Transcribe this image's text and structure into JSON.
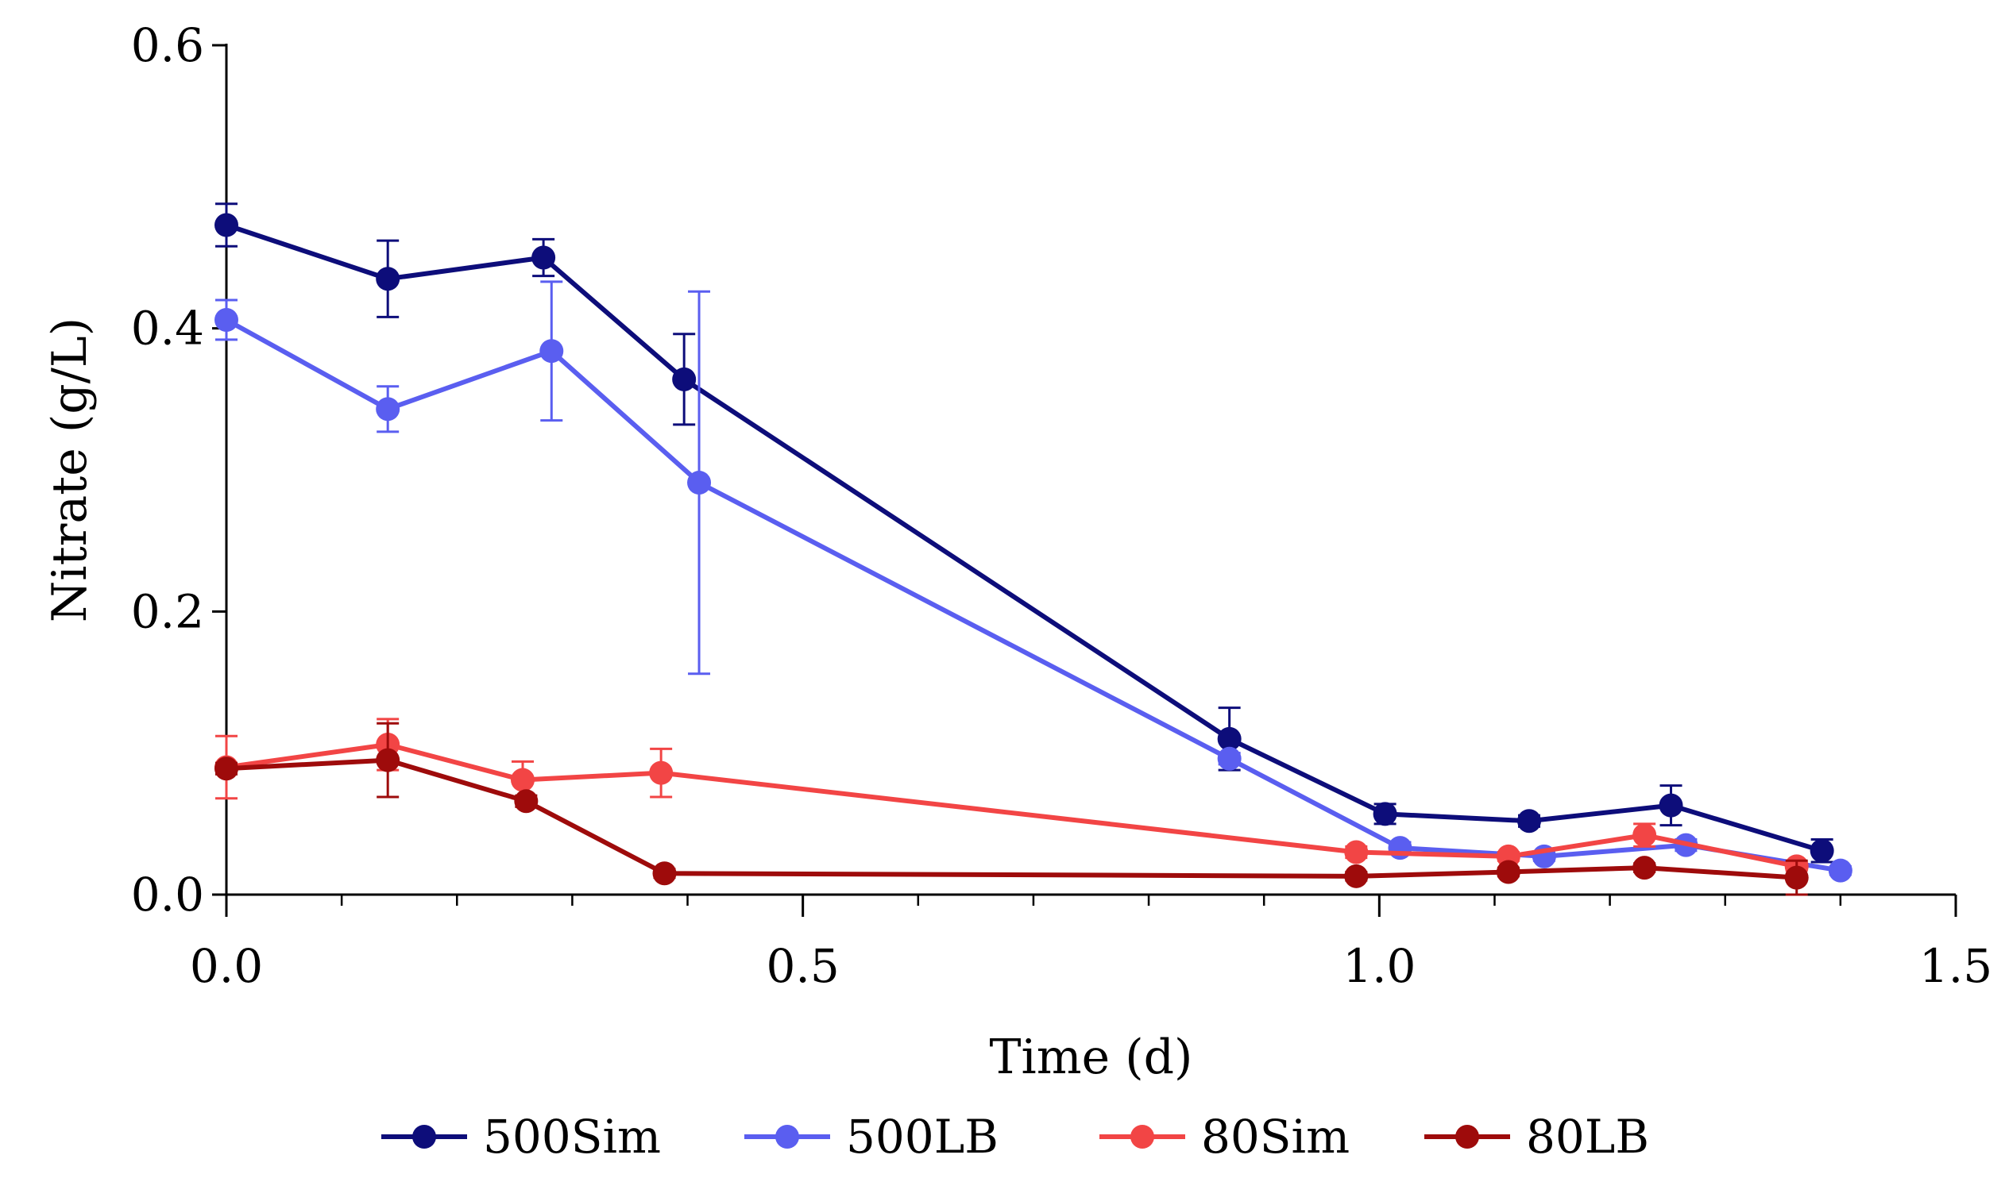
{
  "chart_data": {
    "type": "line",
    "title": "",
    "xlabel": "Time (d)",
    "ylabel": "Nitrate (g/L)",
    "xlim": [
      0,
      1.5
    ],
    "ylim": [
      0,
      0.6
    ],
    "x_ticks": [
      0.0,
      0.5,
      1.0,
      1.5
    ],
    "x_tick_labels": [
      "0.0",
      "0.5",
      "1.0",
      "1.5"
    ],
    "x_minor_step": 0.1,
    "y_ticks": [
      0.0,
      0.2,
      0.4,
      0.6
    ],
    "y_tick_labels": [
      "0.0",
      "0.2",
      "0.4",
      "0.6"
    ],
    "legend_position": "bottom",
    "grid": false,
    "series": [
      {
        "name": "500Sim",
        "color": "#0d0d7a",
        "points": [
          {
            "x": 0.0,
            "y": 0.473,
            "err": 0.015
          },
          {
            "x": 0.14,
            "y": 0.435,
            "err": 0.027
          },
          {
            "x": 0.275,
            "y": 0.45,
            "err": 0.013
          },
          {
            "x": 0.397,
            "y": 0.364,
            "err": 0.032
          },
          {
            "x": 0.87,
            "y": 0.11,
            "err": 0.022
          },
          {
            "x": 1.005,
            "y": 0.057,
            "err": 0.007
          },
          {
            "x": 1.13,
            "y": 0.052,
            "err": 0.004
          },
          {
            "x": 1.253,
            "y": 0.063,
            "err": 0.014
          },
          {
            "x": 1.384,
            "y": 0.031,
            "err": 0.008
          }
        ]
      },
      {
        "name": "500LB",
        "color": "#5a5ef0",
        "points": [
          {
            "x": 0.0,
            "y": 0.406,
            "err": 0.014
          },
          {
            "x": 0.14,
            "y": 0.343,
            "err": 0.016
          },
          {
            "x": 0.282,
            "y": 0.384,
            "err": 0.049
          },
          {
            "x": 0.41,
            "y": 0.291,
            "err": 0.135
          },
          {
            "x": 0.87,
            "y": 0.096,
            "err": 0.004
          },
          {
            "x": 1.018,
            "y": 0.033,
            "err": 0.004
          },
          {
            "x": 1.143,
            "y": 0.027,
            "err": 0.003
          },
          {
            "x": 1.266,
            "y": 0.035,
            "err": 0.004
          },
          {
            "x": 1.4,
            "y": 0.017,
            "err": 0.003
          }
        ]
      },
      {
        "name": "80Sim",
        "color": "#f24545",
        "points": [
          {
            "x": 0.0,
            "y": 0.09,
            "err": 0.022
          },
          {
            "x": 0.14,
            "y": 0.106,
            "err": 0.018
          },
          {
            "x": 0.257,
            "y": 0.081,
            "err": 0.013
          },
          {
            "x": 0.377,
            "y": 0.086,
            "err": 0.017
          },
          {
            "x": 0.98,
            "y": 0.03,
            "err": 0.004
          },
          {
            "x": 1.112,
            "y": 0.027,
            "err": 0.003
          },
          {
            "x": 1.23,
            "y": 0.042,
            "err": 0.008
          },
          {
            "x": 1.362,
            "y": 0.02,
            "err": 0.003
          }
        ]
      },
      {
        "name": "80LB",
        "color": "#9e0b0b",
        "points": [
          {
            "x": 0.0,
            "y": 0.089,
            "err": 0.004
          },
          {
            "x": 0.14,
            "y": 0.095,
            "err": 0.026
          },
          {
            "x": 0.26,
            "y": 0.066,
            "err": 0.004
          },
          {
            "x": 0.38,
            "y": 0.015,
            "err": 0.003
          },
          {
            "x": 0.98,
            "y": 0.013,
            "err": 0.003
          },
          {
            "x": 1.112,
            "y": 0.016,
            "err": 0.003
          },
          {
            "x": 1.23,
            "y": 0.019,
            "err": 0.003
          },
          {
            "x": 1.362,
            "y": 0.012,
            "err": 0.012
          }
        ]
      }
    ]
  }
}
